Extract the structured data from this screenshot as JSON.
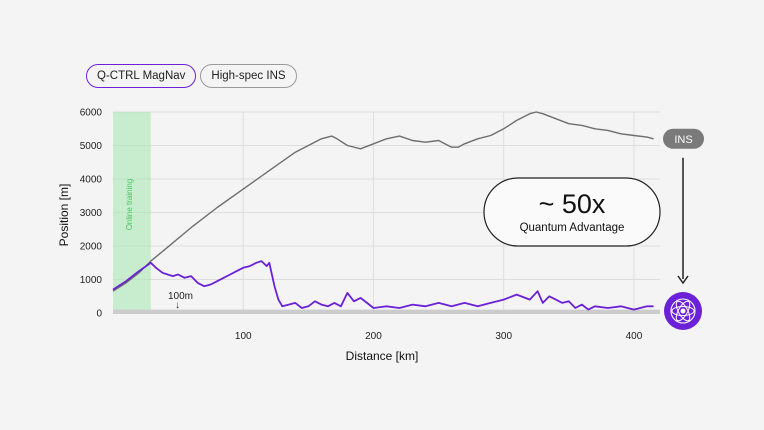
{
  "legend": {
    "magnav_label": "Q-CTRL MagNav",
    "ins_label": "High-spec INS"
  },
  "colors": {
    "magnav": "#6b21d6",
    "ins": "#6e6e6e",
    "training": "#a8e6b4",
    "baseline": "#cccccc"
  },
  "annotations": {
    "training_label": "Online training",
    "baseline_label": "100m",
    "ins_badge": "INS",
    "advantage_value": "~ 50x",
    "advantage_caption": "Quantum Advantage"
  },
  "chart_data": {
    "type": "line",
    "xlabel": "Distance [km]",
    "ylabel": "Position [m]",
    "xlim": [
      0,
      420
    ],
    "ylim": [
      0,
      6000
    ],
    "xticks": [
      100,
      200,
      300,
      400
    ],
    "yticks": [
      0,
      1000,
      2000,
      3000,
      4000,
      5000,
      6000
    ],
    "grid": true,
    "training_range_km": [
      0,
      29
    ],
    "series": [
      {
        "name": "High-spec INS",
        "x": [
          0,
          10,
          20,
          29,
          40,
          60,
          80,
          100,
          120,
          140,
          160,
          168,
          172,
          180,
          190,
          200,
          210,
          220,
          230,
          240,
          250,
          260,
          265,
          270,
          280,
          290,
          300,
          310,
          320,
          325,
          330,
          340,
          350,
          360,
          370,
          380,
          390,
          400,
          410,
          415
        ],
        "y": [
          650,
          900,
          1200,
          1550,
          1900,
          2550,
          3150,
          3700,
          4250,
          4800,
          5200,
          5280,
          5200,
          5000,
          4900,
          5050,
          5200,
          5280,
          5150,
          5100,
          5150,
          4950,
          4950,
          5050,
          5200,
          5300,
          5500,
          5750,
          5950,
          6000,
          5950,
          5800,
          5650,
          5600,
          5500,
          5450,
          5350,
          5300,
          5250,
          5200
        ]
      },
      {
        "name": "Q-CTRL MagNav",
        "x": [
          0,
          10,
          20,
          29,
          33,
          38,
          42,
          46,
          50,
          55,
          60,
          65,
          70,
          75,
          80,
          85,
          90,
          95,
          100,
          105,
          110,
          114,
          118,
          120,
          122,
          124,
          127,
          130,
          135,
          140,
          145,
          150,
          155,
          160,
          165,
          170,
          175,
          180,
          185,
          190,
          195,
          200,
          210,
          220,
          230,
          240,
          250,
          260,
          270,
          280,
          290,
          300,
          310,
          320,
          326,
          330,
          335,
          340,
          345,
          350,
          355,
          360,
          365,
          370,
          380,
          390,
          400,
          410,
          415
        ],
        "y": [
          700,
          950,
          1250,
          1500,
          1350,
          1200,
          1150,
          1100,
          1150,
          1050,
          1100,
          900,
          800,
          850,
          950,
          1050,
          1150,
          1250,
          1350,
          1400,
          1500,
          1550,
          1400,
          1500,
          1150,
          800,
          400,
          200,
          250,
          300,
          150,
          200,
          350,
          250,
          200,
          300,
          200,
          600,
          350,
          450,
          300,
          150,
          200,
          150,
          250,
          200,
          300,
          200,
          300,
          200,
          300,
          400,
          550,
          400,
          650,
          300,
          500,
          400,
          300,
          350,
          150,
          250,
          100,
          200,
          150,
          200,
          100,
          200,
          200
        ]
      }
    ]
  }
}
